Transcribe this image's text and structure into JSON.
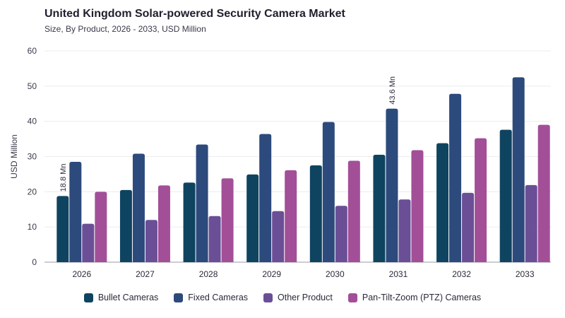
{
  "chart_data": {
    "type": "bar",
    "title": "United Kingdom Solar-powered Security Camera Market",
    "subtitle": "Size, By Product, 2026 - 2033, USD Million",
    "xlabel": "",
    "ylabel": "USD Million",
    "ylim": [
      0,
      60
    ],
    "yticks": [
      0,
      10,
      20,
      30,
      40,
      50,
      60
    ],
    "categories": [
      "2026",
      "2027",
      "2028",
      "2029",
      "2030",
      "2031",
      "2032",
      "2033"
    ],
    "grid": true,
    "legend_position": "bottom",
    "series": [
      {
        "name": "Bullet Cameras",
        "color": "#0f4460",
        "values": [
          18.8,
          20.5,
          22.6,
          24.9,
          27.5,
          30.5,
          33.8,
          37.6
        ]
      },
      {
        "name": "Fixed Cameras",
        "color": "#2d4a7c",
        "values": [
          28.5,
          30.8,
          33.4,
          36.4,
          39.8,
          43.6,
          47.8,
          52.5
        ]
      },
      {
        "name": "Other Product",
        "color": "#6a4f96",
        "values": [
          10.9,
          12.0,
          13.1,
          14.5,
          16.0,
          17.8,
          19.7,
          21.9
        ]
      },
      {
        "name": "Pan-Tilt-Zoom (PTZ) Cameras",
        "color": "#a24f98",
        "values": [
          20.0,
          21.8,
          23.8,
          26.1,
          28.8,
          31.8,
          35.2,
          39.0
        ]
      }
    ],
    "annotations": [
      {
        "text": "18.8 Mn",
        "series": 0,
        "category": "2026"
      },
      {
        "text": "43.6 Mn",
        "series": 1,
        "category": "2031"
      }
    ]
  }
}
